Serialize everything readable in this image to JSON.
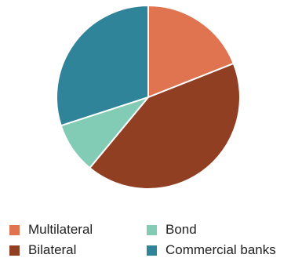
{
  "chart_data": {
    "type": "pie",
    "title": "",
    "start_angle_deg": 0,
    "direction": "clockwise",
    "slices": [
      {
        "label": "Multilateral",
        "value": 19,
        "color": "#E07350"
      },
      {
        "label": "Bilateral",
        "value": 42,
        "color": "#913F22"
      },
      {
        "label": "Bond",
        "value": 9,
        "color": "#82CCB6"
      },
      {
        "label": "Commercial banks",
        "value": 30,
        "color": "#30849A"
      }
    ],
    "legend": {
      "placement": "bottom",
      "columns": 2,
      "order": [
        "Multilateral",
        "Bond",
        "Bilateral",
        "Commercial banks"
      ]
    }
  }
}
